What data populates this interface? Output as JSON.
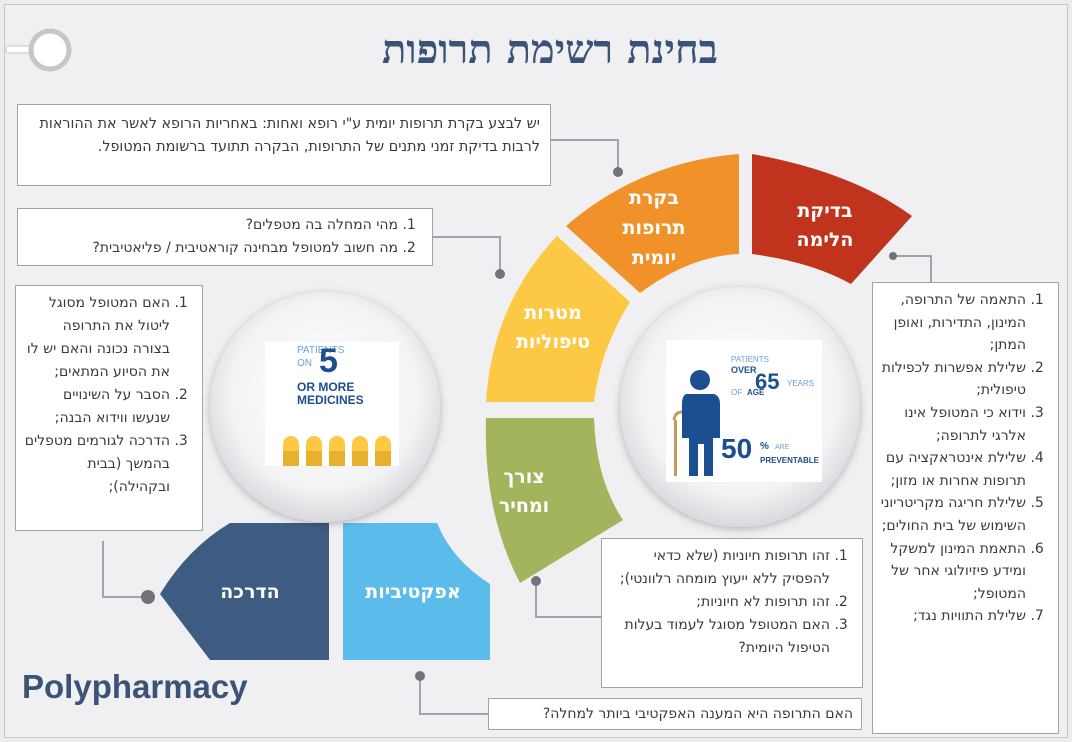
{
  "title": "בחינת רשימת תרופות",
  "brand": "Polypharmacy",
  "segments": {
    "lima": "בדיקת הלימה",
    "daily": "בקרת תרופות יומית",
    "goals": "מטרות טיפוליות",
    "need": "צורך ומחיר",
    "effect": "אפקטיביות",
    "guide": "הדרכה"
  },
  "boxes": {
    "daily_note": "יש לבצע בקרת תרופות יומית ע\"י רופא ואחות: באחריות הרופא לאשר את ההוראות לרבות בדיקת זמני מתנים של התרופות, הבקרה תתועד ברשומת המטופל.",
    "goals_items": [
      "מהי המחלה בה מטפלים?",
      "מה חשוב למטופל מבחינה קוראטיבית / פליאטיבית?"
    ],
    "guide_items": [
      "האם המטופל מסוגל ליטול את התרופה בצורה נכונה והאם יש לו את הסיוע המתאים;",
      "הסבר על השינויים שנעשו ווידוא הבנה;",
      "הדרכה לגורמים מטפלים בהמשך (בבית ובקהילה);"
    ],
    "lima_items": [
      "התאמה של התרופה, המינון, התדירות, ואופן המתן;",
      "שלילת אפשרות לכפילות טיפולית;",
      "וידוא כי המטופל אינו אלרגי לתרופה;",
      "שלילת אינטראקציה עם תרופות אחרות או מזון;",
      "שלילת חריגה מקריטריוני השימוש של בית החולים;",
      "התאמת המינון למשקל ומידע פיזיולוגי אחר של המטופל;",
      "שלילת התוויות נגד;"
    ],
    "need_items": [
      "זהו תרופות חיוניות (שלא כדאי להפסיק ללא ייעוץ מומחה רלוונטי);",
      "זהו תרופות לא חיוניות;",
      "האם המטופל מסוגל לעמוד בעלות הטיפול היומית?"
    ],
    "effect_note": "האם התרופה היא המענה האפקטיבי ביותר למחלה?"
  },
  "stat_left": {
    "line1": "PATIENTS",
    "line2a": "ON",
    "num": "5",
    "line3": "OR MORE",
    "line4": "MEDICINES"
  },
  "stat_right": {
    "line1": "PATIENTS",
    "line2": "OVER",
    "num": "65",
    "years": "YEARS",
    "of": "OF",
    "age": "AGE",
    "pct": "50",
    "pct_sign": "%",
    "are": "ARE",
    "prev": "PREVENTABLE"
  },
  "colors": {
    "lima": "#c0341e",
    "daily": "#f0912a",
    "goals": "#fdc843",
    "need": "#a2b45c",
    "effect": "#5bbcec",
    "guide": "#3e5b82",
    "title": "#3b5377"
  },
  "icons": [
    "magnifier-icon",
    "pills-icon",
    "elderly-person-icon"
  ]
}
